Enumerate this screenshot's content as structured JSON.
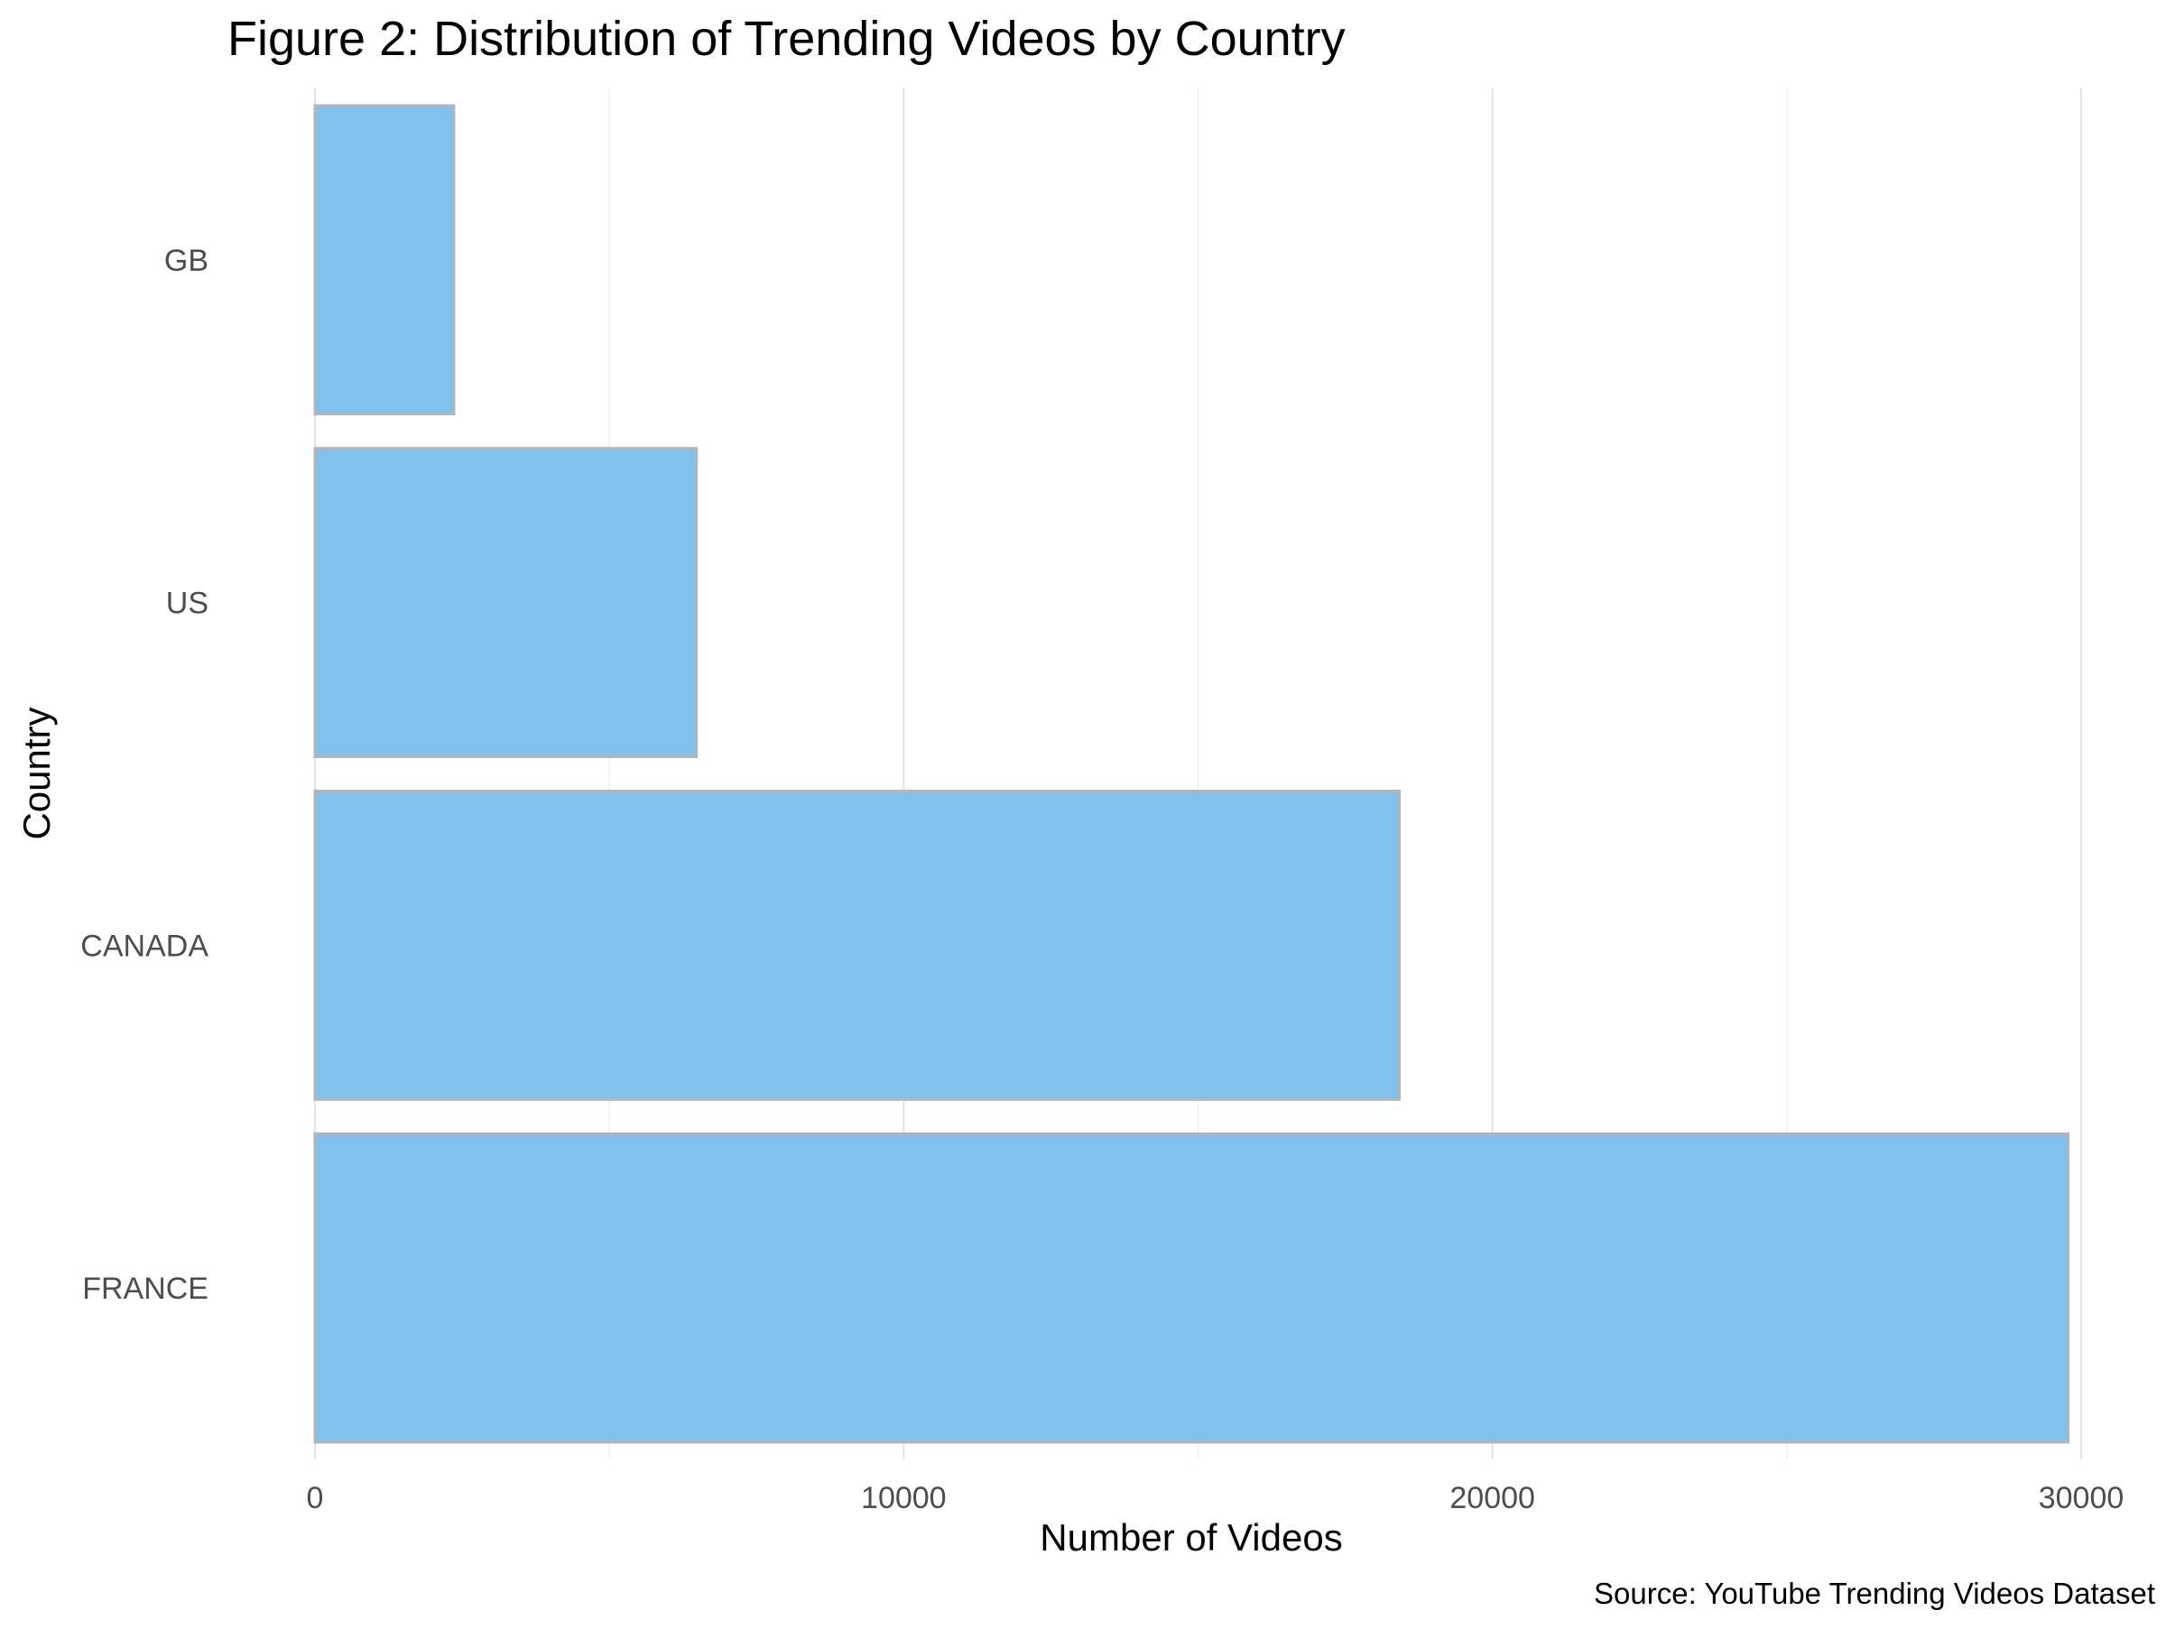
{
  "chart_data": {
    "type": "bar",
    "orientation": "horizontal",
    "title": "Figure 2: Distribution of Trending Videos by Country",
    "xlabel": "Number of Videos",
    "ylabel": "Country",
    "caption": "Source: YouTube Trending Videos Dataset",
    "categories": [
      "GB",
      "US",
      "CANADA",
      "FRANCE"
    ],
    "values": [
      2360,
      6480,
      18420,
      29780
    ],
    "xlim": [
      0,
      30000
    ],
    "xticks": [
      0,
      10000,
      20000,
      30000
    ],
    "xtick_labels": [
      "0",
      "10000",
      "20000",
      "30000"
    ],
    "minor_gridlines": [
      5000,
      15000,
      25000
    ],
    "grid": true,
    "legend": "none",
    "colors": {
      "bar_fill": "#80c1ed",
      "bar_stroke": "#b5b5b5",
      "grid_major": "#e3e3e3",
      "grid_minor": "#efefef",
      "title": "#000000",
      "axis_text": "#4d4d4d"
    }
  }
}
